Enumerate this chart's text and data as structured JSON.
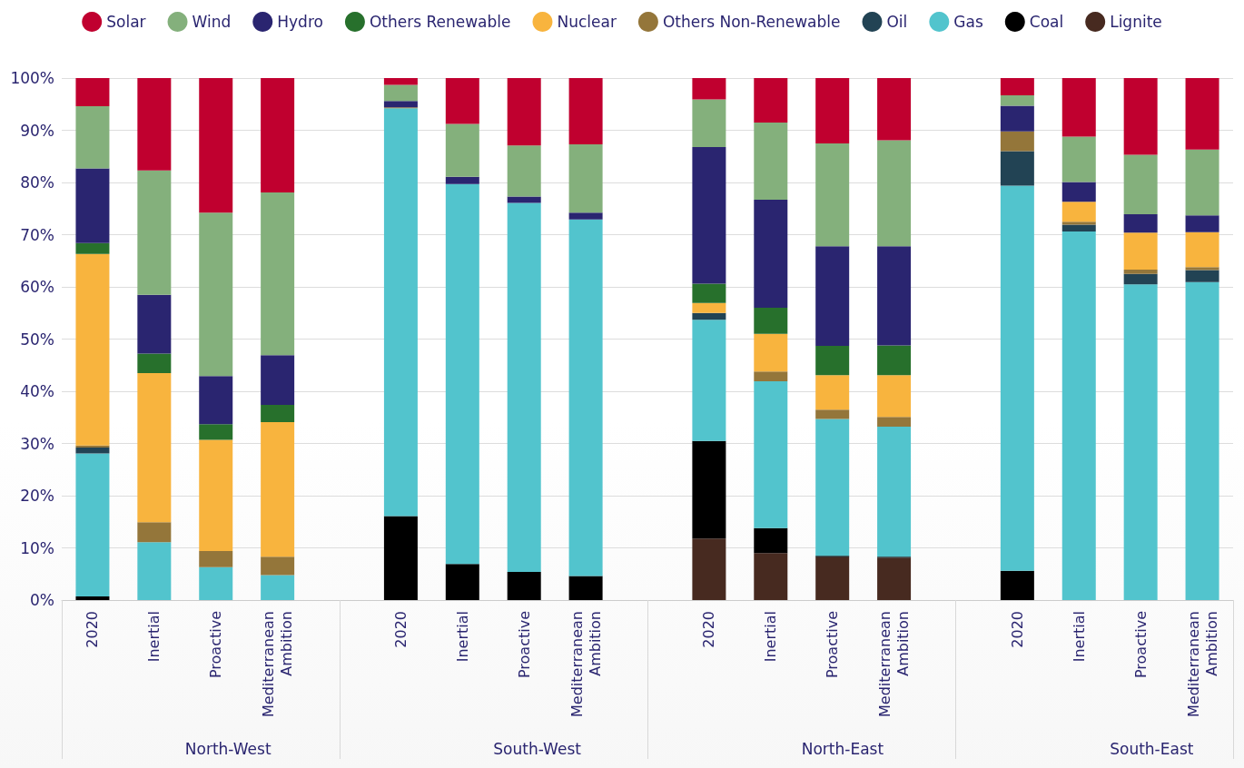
{
  "chart_data": {
    "type": "bar",
    "stacked": true,
    "legend": "top",
    "grid": "y",
    "categories": [
      "2020",
      "Inertial",
      "Proactive",
      "Mediterranean Ambition",
      null,
      "2020",
      "Inertial",
      "Proactive",
      "Mediterranean Ambition",
      null,
      "2020",
      "Inertial",
      "Proactive",
      "Mediterranean Ambition",
      null,
      "2020",
      "Inertial",
      "Proactive",
      "Mediterranean Ambition"
    ],
    "annotations": [
      "North-West",
      "South-West",
      "North-East",
      "South-East"
    ],
    "ylim": [
      0,
      100
    ],
    "yticks": [
      {
        "value": 0,
        "label": "0%"
      },
      {
        "value": 10,
        "label": "10%"
      },
      {
        "value": 20,
        "label": "20%"
      },
      {
        "value": 30,
        "label": "30%"
      },
      {
        "value": 40,
        "label": "40%"
      },
      {
        "value": 50,
        "label": "50%"
      },
      {
        "value": 60,
        "label": "60%"
      },
      {
        "value": 70,
        "label": "70%"
      },
      {
        "value": 80,
        "label": "80%"
      },
      {
        "value": 90,
        "label": "90%"
      },
      {
        "value": 100,
        "label": "100%"
      }
    ],
    "series": [
      {
        "name": "Lignite",
        "color": "#472a20",
        "values": [
          0,
          0,
          0,
          0,
          null,
          0,
          0,
          0,
          0,
          null,
          11.8,
          9.0,
          8.2,
          8.1,
          null,
          0,
          0,
          0,
          0
        ]
      },
      {
        "name": "Coal",
        "color": "#000000",
        "values": [
          0.7,
          0,
          0,
          0,
          null,
          16.1,
          6.9,
          5.4,
          4.6,
          null,
          18.7,
          4.8,
          0.3,
          0.2,
          null,
          5.6,
          0,
          0,
          0
        ]
      },
      {
        "name": "Gas",
        "color": "#52c4cd",
        "values": [
          27.4,
          11.1,
          6.3,
          4.8,
          null,
          78.1,
          72.8,
          70.7,
          68.3,
          null,
          23.2,
          28.1,
          26.2,
          24.9,
          null,
          73.8,
          70.6,
          60.5,
          60.9
        ]
      },
      {
        "name": "Oil",
        "color": "#224354",
        "values": [
          1.1,
          0,
          0,
          0,
          null,
          0,
          0,
          0,
          0,
          null,
          1.3,
          0,
          0,
          0,
          null,
          6.6,
          1.3,
          2.0,
          2.3
        ]
      },
      {
        "name": "Others Non-Renewable",
        "color": "#94763a",
        "values": [
          0.4,
          3.8,
          3.1,
          3.5,
          null,
          0.2,
          0,
          0,
          0,
          null,
          0,
          1.9,
          1.8,
          1.9,
          null,
          3.8,
          0.6,
          0.8,
          0.6
        ]
      },
      {
        "name": "Nuclear",
        "color": "#f8b43e",
        "values": [
          36.7,
          28.6,
          21.3,
          25.8,
          null,
          0,
          0,
          0,
          0,
          null,
          1.9,
          7.2,
          6.6,
          8.0,
          null,
          0,
          3.8,
          7.1,
          6.7
        ]
      },
      {
        "name": "Others Renewable",
        "color": "#27702c",
        "values": [
          2.1,
          3.7,
          3.0,
          3.3,
          null,
          0,
          0,
          0,
          0,
          null,
          3.7,
          5.0,
          5.6,
          5.7,
          null,
          0,
          0,
          0,
          0
        ]
      },
      {
        "name": "Hydro",
        "color": "#2a2570",
        "values": [
          14.3,
          11.3,
          9.2,
          9.5,
          null,
          1.2,
          1.4,
          1.2,
          1.3,
          null,
          26.2,
          20.7,
          19.1,
          19.0,
          null,
          4.9,
          3.8,
          3.5,
          3.2
        ]
      },
      {
        "name": "Wind",
        "color": "#84b07c",
        "values": [
          11.9,
          23.8,
          31.3,
          31.2,
          null,
          3.1,
          10.1,
          9.8,
          13.1,
          null,
          9.1,
          14.8,
          19.7,
          20.3,
          null,
          2.0,
          8.7,
          11.4,
          12.6
        ]
      },
      {
        "name": "Solar",
        "color": "#c0002f",
        "values": [
          5.4,
          17.7,
          25.8,
          21.9,
          null,
          1.3,
          8.8,
          12.9,
          12.7,
          null,
          4.1,
          8.5,
          12.5,
          11.9,
          null,
          3.3,
          11.2,
          14.7,
          13.7
        ]
      }
    ]
  }
}
